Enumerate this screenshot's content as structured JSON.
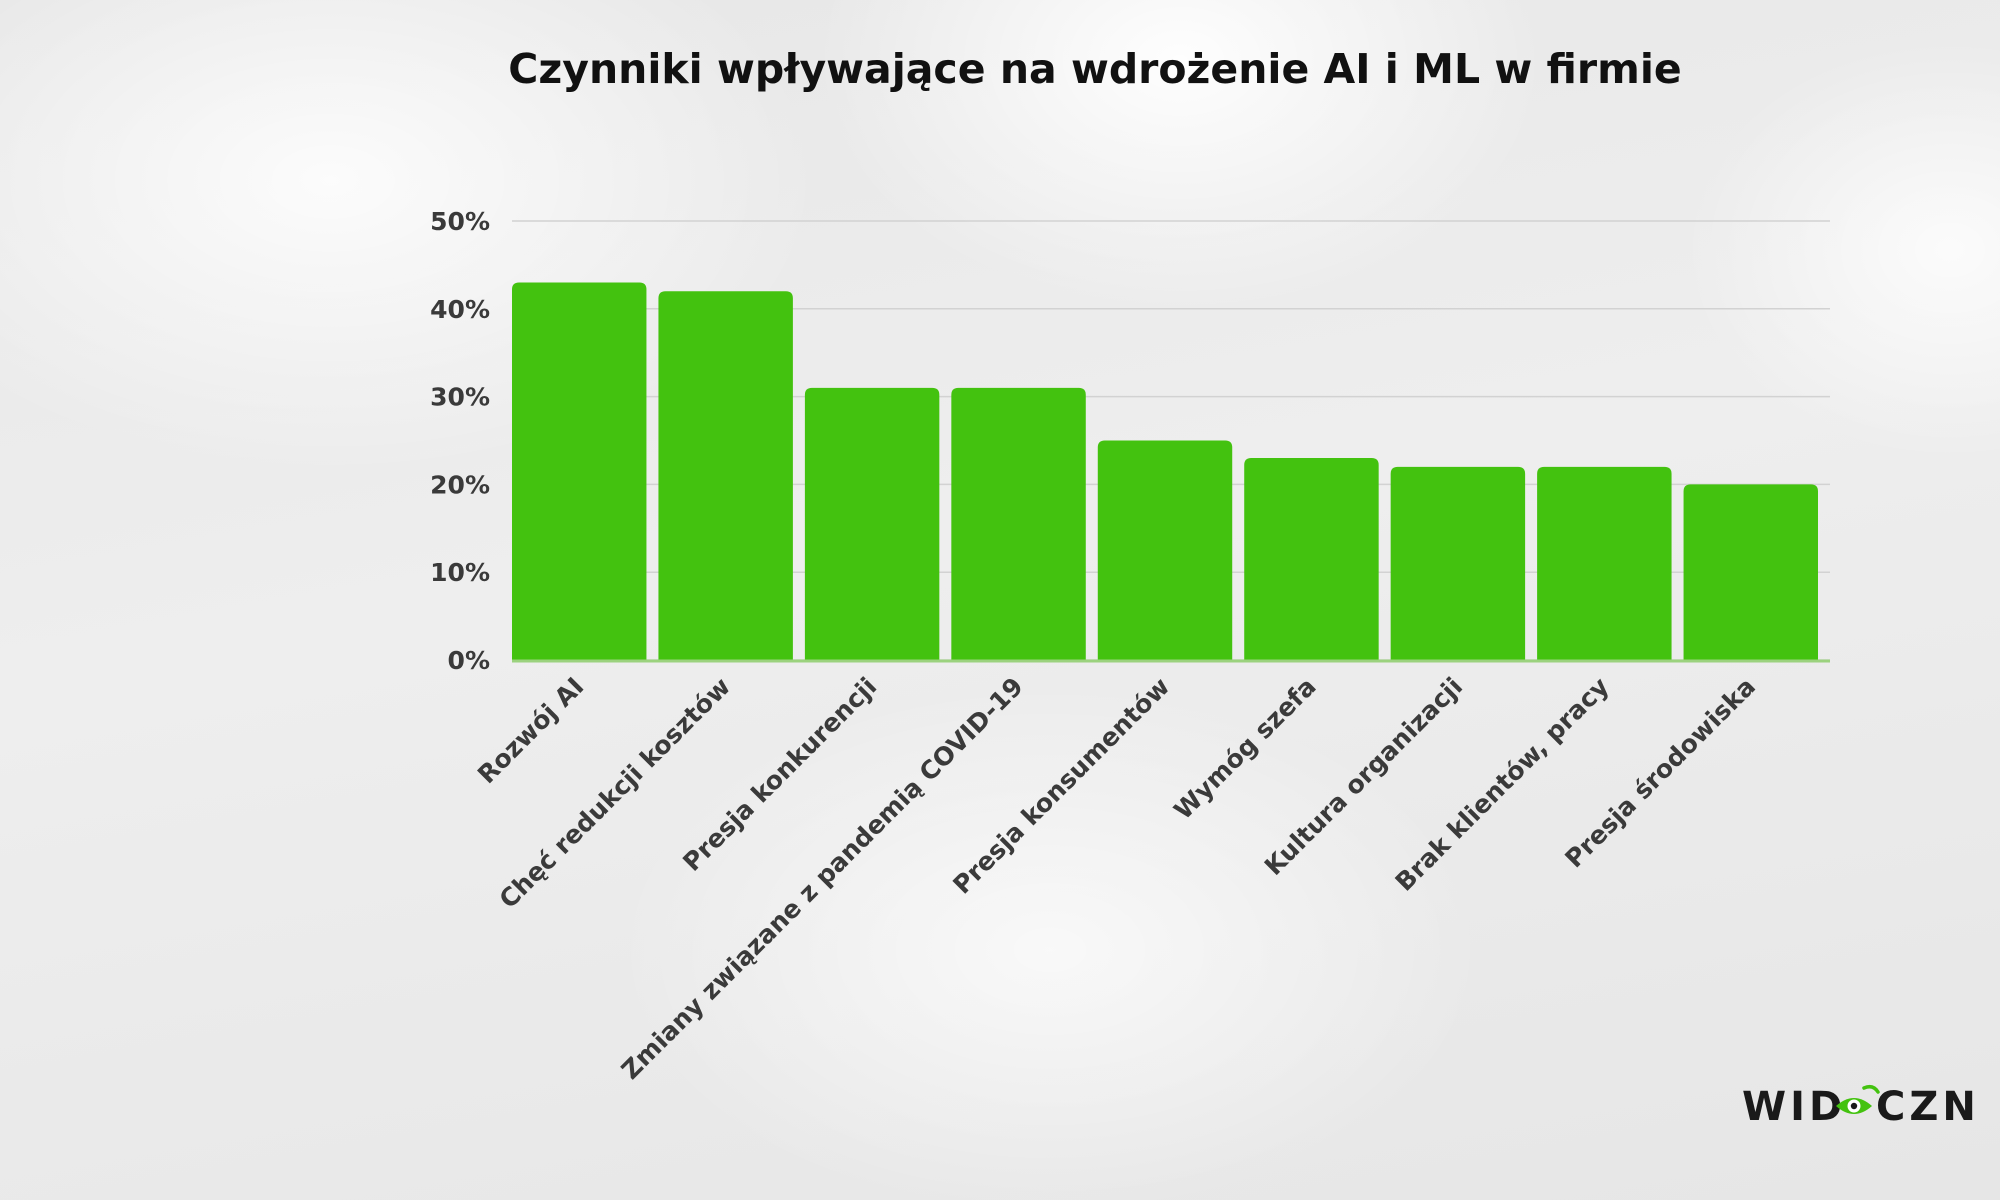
{
  "chart_data": {
    "type": "bar",
    "title": "Czynniki wpływające na wdrożenie AI i ML w firmie",
    "categories": [
      "Rozwój AI",
      "Chęć redukcji kosztów",
      "Presja konkurencji",
      "Zmiany związane z pandemią COVID-19",
      "Presja konsumentów",
      "Wymóg szefa",
      "Kultura organizacji",
      "Brak klientów, pracy",
      "Presja środowiska"
    ],
    "values": [
      43,
      42,
      31,
      31,
      25,
      23,
      22,
      22,
      20
    ],
    "ylim": [
      0,
      50
    ],
    "yticks": [
      "0%",
      "10%",
      "20%",
      "30%",
      "40%",
      "50%"
    ],
    "xlabel": "",
    "ylabel": "",
    "grid": true,
    "bar_color": "#43c20f"
  },
  "logo": {
    "left_text": "WID",
    "right_text": "CZNI",
    "accent_color": "#43c20f"
  }
}
